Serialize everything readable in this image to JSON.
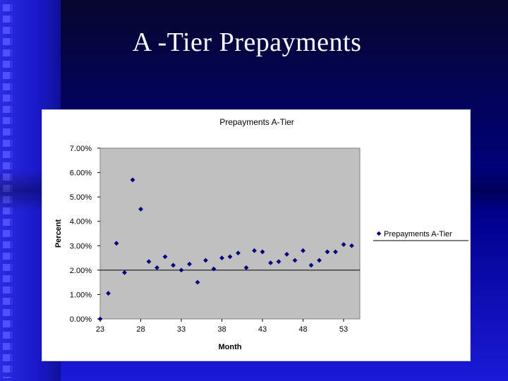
{
  "slide": {
    "title": "A -Tier Prepayments"
  },
  "chart_data": {
    "type": "scatter",
    "title": "Prepayments A-Tier",
    "xlabel": "Month",
    "ylabel": "Percent",
    "xlim": [
      23,
      55
    ],
    "ylim": [
      0,
      7
    ],
    "x_ticks": [
      "23",
      "28",
      "33",
      "38",
      "43",
      "48",
      "53"
    ],
    "x_tick_values": [
      23,
      28,
      33,
      38,
      43,
      48,
      53
    ],
    "y_ticks": [
      "0.00%",
      "1.00%",
      "2.00%",
      "3.00%",
      "4.00%",
      "5.00%",
      "6.00%",
      "7.00%"
    ],
    "y_tick_values": [
      0,
      1,
      2,
      3,
      4,
      5,
      6,
      7
    ],
    "reference_line_y": 2,
    "grid": false,
    "plot_background": "#c0c0c0",
    "marker_color": "#000080",
    "legend_position": "right",
    "series": [
      {
        "name": "Prepayments A-Tier",
        "points": [
          [
            23,
            0.0
          ],
          [
            24,
            1.05
          ],
          [
            25,
            3.1
          ],
          [
            26,
            1.9
          ],
          [
            27,
            5.7
          ],
          [
            28,
            4.5
          ],
          [
            29,
            2.35
          ],
          [
            30,
            2.1
          ],
          [
            31,
            2.55
          ],
          [
            32,
            2.2
          ],
          [
            33,
            2.0
          ],
          [
            34,
            2.25
          ],
          [
            35,
            1.5
          ],
          [
            36,
            2.4
          ],
          [
            37,
            2.05
          ],
          [
            38,
            2.5
          ],
          [
            39,
            2.55
          ],
          [
            40,
            2.7
          ],
          [
            41,
            2.1
          ],
          [
            42,
            2.8
          ],
          [
            43,
            2.75
          ],
          [
            44,
            2.3
          ],
          [
            45,
            2.35
          ],
          [
            46,
            2.65
          ],
          [
            47,
            2.4
          ],
          [
            48,
            2.8
          ],
          [
            49,
            2.2
          ],
          [
            50,
            2.4
          ],
          [
            51,
            2.75
          ],
          [
            52,
            2.75
          ],
          [
            53,
            3.05
          ],
          [
            54,
            3.0
          ]
        ]
      }
    ]
  }
}
